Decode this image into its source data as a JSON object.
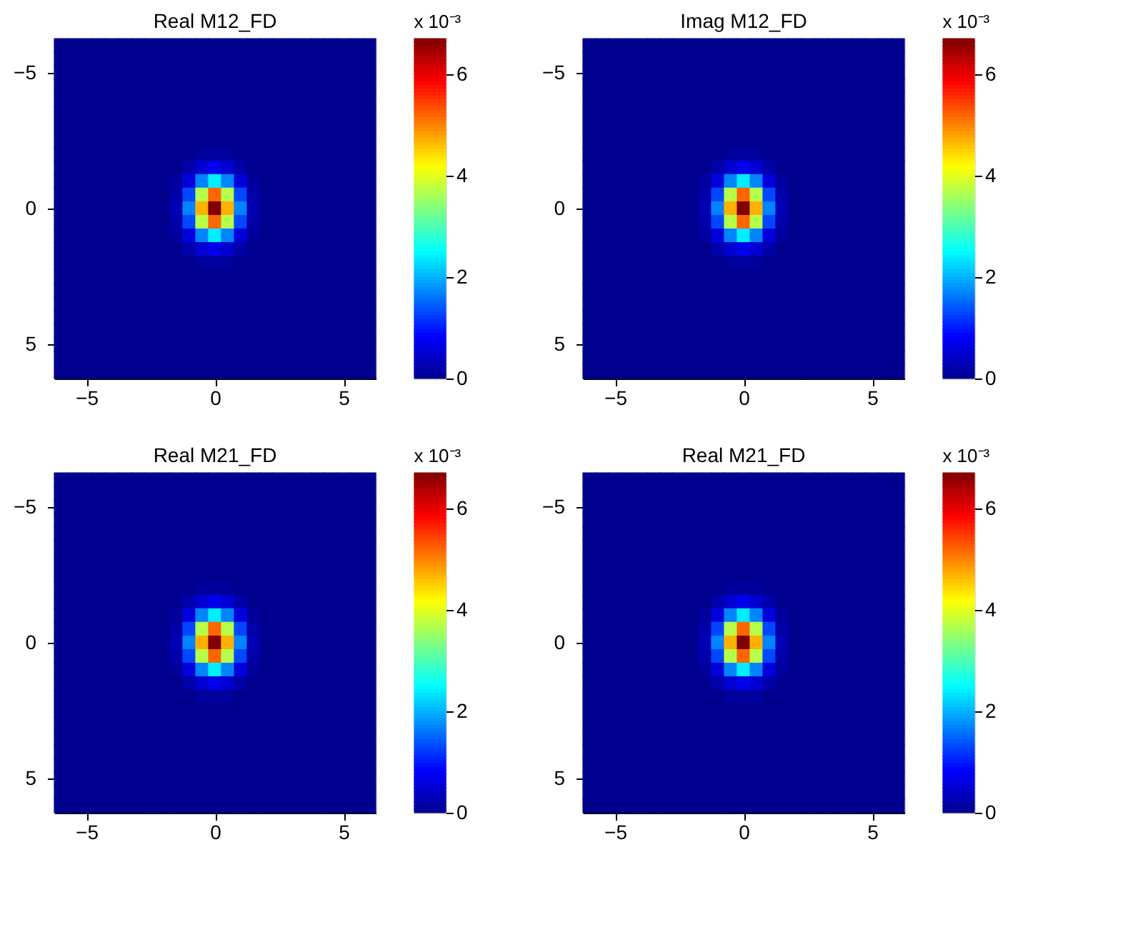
{
  "chart_data": [
    {
      "type": "heatmap",
      "title": "Real M12_FD",
      "clabel": "x 10⁻³",
      "clim": [
        0,
        6.7
      ],
      "cticks": [
        0,
        2,
        4,
        6
      ],
      "xlim": [
        -6.25,
        6.25
      ],
      "ylim": [
        6.25,
        -6.25
      ],
      "xticks": [
        -5,
        0,
        5
      ],
      "yticks": [
        -5,
        0,
        5
      ],
      "x": [
        -6,
        -5.5,
        -5,
        -4.5,
        -4,
        -3.5,
        -3,
        -2.5,
        -2,
        -1.5,
        -1,
        -0.5,
        0,
        0.5,
        1,
        1.5,
        2,
        2.5,
        3,
        3.5,
        4,
        4.5,
        5,
        5.5,
        6
      ],
      "y": [
        -6,
        -5.5,
        -5,
        -4.5,
        -4,
        -3.5,
        -3,
        -2.5,
        -2,
        -1.5,
        -1,
        -0.5,
        0,
        0.5,
        1,
        1.5,
        2,
        2.5,
        3,
        3.5,
        4,
        4.5,
        5,
        5.5,
        6
      ],
      "cells": [
        [
          0,
          0,
          0,
          0,
          0,
          0,
          0,
          0,
          0,
          0,
          0,
          0,
          0,
          0,
          0,
          0,
          0,
          0,
          0,
          0,
          0,
          0,
          0,
          0,
          0
        ],
        [
          0,
          0,
          0,
          0,
          0,
          0,
          0,
          0,
          0,
          0,
          0,
          0,
          0,
          0,
          0,
          0,
          0,
          0,
          0,
          0,
          0,
          0,
          0,
          0,
          0
        ],
        [
          0,
          0,
          0,
          0,
          0,
          0,
          0,
          0,
          0,
          0,
          0,
          0,
          0,
          0,
          0,
          0,
          0,
          0,
          0,
          0,
          0,
          0,
          0,
          0,
          0
        ],
        [
          0,
          0,
          0,
          0,
          0,
          0,
          0,
          0,
          0,
          0,
          0,
          0,
          0,
          0,
          0,
          0,
          0,
          0,
          0,
          0,
          0,
          0,
          0,
          0,
          0
        ],
        [
          0,
          0,
          0,
          0,
          0,
          0,
          0,
          0,
          0,
          0,
          0,
          0,
          0,
          0,
          0,
          0,
          0,
          0,
          0,
          0,
          0,
          0,
          0,
          0,
          0
        ],
        [
          0,
          0,
          0,
          0,
          0,
          0,
          0,
          0,
          0,
          0,
          0,
          0,
          0,
          0,
          0,
          0,
          0,
          0,
          0,
          0,
          0,
          0,
          0,
          0,
          0
        ],
        [
          0,
          0,
          0,
          0,
          0,
          0,
          0,
          0,
          0,
          0,
          0,
          0,
          0,
          0,
          0,
          0,
          0,
          0,
          0,
          0,
          0,
          0,
          0,
          0,
          0
        ],
        [
          0,
          0,
          0,
          0,
          0,
          0,
          0,
          0,
          0,
          0,
          0,
          0,
          0,
          0,
          0,
          0,
          0,
          0,
          0,
          0,
          0,
          0,
          0,
          0,
          0
        ],
        [
          0,
          0,
          0,
          0,
          0,
          0,
          0,
          0,
          0,
          0,
          0,
          0.1,
          0.1,
          0.1,
          0,
          0,
          0,
          0,
          0,
          0,
          0,
          0,
          0,
          0,
          0
        ],
        [
          0,
          0,
          0,
          0,
          0,
          0,
          0,
          0,
          0,
          0,
          0.2,
          0.5,
          0.7,
          0.5,
          0.2,
          0,
          0,
          0,
          0,
          0,
          0,
          0,
          0,
          0,
          0
        ],
        [
          0,
          0,
          0,
          0,
          0,
          0,
          0,
          0,
          0,
          0.1,
          0.6,
          1.7,
          2.4,
          1.7,
          0.6,
          0.1,
          0,
          0,
          0,
          0,
          0,
          0,
          0,
          0,
          0
        ],
        [
          0,
          0,
          0,
          0,
          0,
          0,
          0,
          0,
          0,
          0.2,
          1.3,
          3.7,
          5.2,
          3.7,
          1.3,
          0.2,
          0,
          0,
          0,
          0,
          0,
          0,
          0,
          0,
          0
        ],
        [
          0,
          0,
          0,
          0,
          0,
          0,
          0,
          0,
          0,
          0.3,
          1.7,
          4.7,
          6.7,
          4.7,
          1.7,
          0.3,
          0,
          0,
          0,
          0,
          0,
          0,
          0,
          0,
          0
        ],
        [
          0,
          0,
          0,
          0,
          0,
          0,
          0,
          0,
          0,
          0.2,
          1.3,
          3.7,
          5.2,
          3.7,
          1.3,
          0.2,
          0,
          0,
          0,
          0,
          0,
          0,
          0,
          0,
          0
        ],
        [
          0,
          0,
          0,
          0,
          0,
          0,
          0,
          0,
          0,
          0.1,
          0.6,
          1.7,
          2.4,
          1.7,
          0.6,
          0.1,
          0,
          0,
          0,
          0,
          0,
          0,
          0,
          0,
          0
        ],
        [
          0,
          0,
          0,
          0,
          0,
          0,
          0,
          0,
          0,
          0,
          0.2,
          0.5,
          0.7,
          0.5,
          0.2,
          0,
          0,
          0,
          0,
          0,
          0,
          0,
          0,
          0,
          0
        ],
        [
          0,
          0,
          0,
          0,
          0,
          0,
          0,
          0,
          0,
          0,
          0,
          0.1,
          0.1,
          0.1,
          0,
          0,
          0,
          0,
          0,
          0,
          0,
          0,
          0,
          0,
          0
        ],
        [
          0,
          0,
          0,
          0,
          0,
          0,
          0,
          0,
          0,
          0,
          0,
          0,
          0,
          0,
          0,
          0,
          0,
          0,
          0,
          0,
          0,
          0,
          0,
          0,
          0
        ],
        [
          0,
          0,
          0,
          0,
          0,
          0,
          0,
          0,
          0,
          0,
          0,
          0,
          0,
          0,
          0,
          0,
          0,
          0,
          0,
          0,
          0,
          0,
          0,
          0,
          0
        ],
        [
          0,
          0,
          0,
          0,
          0,
          0,
          0,
          0,
          0,
          0,
          0,
          0,
          0,
          0,
          0,
          0,
          0,
          0,
          0,
          0,
          0,
          0,
          0,
          0,
          0
        ],
        [
          0,
          0,
          0,
          0,
          0,
          0,
          0,
          0,
          0,
          0,
          0,
          0,
          0,
          0,
          0,
          0,
          0,
          0,
          0,
          0,
          0,
          0,
          0,
          0,
          0
        ],
        [
          0,
          0,
          0,
          0,
          0,
          0,
          0,
          0,
          0,
          0,
          0,
          0,
          0,
          0,
          0,
          0,
          0,
          0,
          0,
          0,
          0,
          0,
          0,
          0,
          0
        ],
        [
          0,
          0,
          0,
          0,
          0,
          0,
          0,
          0,
          0,
          0,
          0,
          0,
          0,
          0,
          0,
          0,
          0,
          0,
          0,
          0,
          0,
          0,
          0,
          0,
          0
        ],
        [
          0,
          0,
          0,
          0,
          0,
          0,
          0,
          0,
          0,
          0,
          0,
          0,
          0,
          0,
          0,
          0,
          0,
          0,
          0,
          0,
          0,
          0,
          0,
          0,
          0
        ],
        [
          0,
          0,
          0,
          0,
          0,
          0,
          0,
          0,
          0,
          0,
          0,
          0,
          0,
          0,
          0,
          0,
          0,
          0,
          0,
          0,
          0,
          0,
          0,
          0,
          0
        ]
      ]
    },
    {
      "type": "heatmap",
      "title": "Imag M12_FD",
      "clabel": "x 10⁻³",
      "clim": [
        0,
        6.7
      ],
      "cticks": [
        0,
        2,
        4,
        6
      ],
      "xlim": [
        -6.25,
        6.25
      ],
      "ylim": [
        6.25,
        -6.25
      ],
      "xticks": [
        -5,
        0,
        5
      ],
      "yticks": [
        -5,
        0,
        5
      ],
      "x": [
        -6,
        -5.5,
        -5,
        -4.5,
        -4,
        -3.5,
        -3,
        -2.5,
        -2,
        -1.5,
        -1,
        -0.5,
        0,
        0.5,
        1,
        1.5,
        2,
        2.5,
        3,
        3.5,
        4,
        4.5,
        5,
        5.5,
        6
      ],
      "y": [
        -6,
        -5.5,
        -5,
        -4.5,
        -4,
        -3.5,
        -3,
        -2.5,
        -2,
        -1.5,
        -1,
        -0.5,
        0,
        0.5,
        1,
        1.5,
        2,
        2.5,
        3,
        3.5,
        4,
        4.5,
        5,
        5.5,
        6
      ],
      "cells": [
        [
          0,
          0,
          0,
          0,
          0,
          0,
          0,
          0,
          0,
          0,
          0,
          0,
          0,
          0,
          0,
          0,
          0,
          0,
          0,
          0,
          0,
          0,
          0,
          0,
          0
        ],
        [
          0,
          0,
          0,
          0,
          0,
          0,
          0,
          0,
          0,
          0,
          0,
          0,
          0,
          0,
          0,
          0,
          0,
          0,
          0,
          0,
          0,
          0,
          0,
          0,
          0
        ],
        [
          0,
          0,
          0,
          0,
          0,
          0,
          0,
          0,
          0,
          0,
          0,
          0,
          0,
          0,
          0,
          0,
          0,
          0,
          0,
          0,
          0,
          0,
          0,
          0,
          0
        ],
        [
          0,
          0,
          0,
          0,
          0,
          0,
          0,
          0,
          0,
          0,
          0,
          0,
          0,
          0,
          0,
          0,
          0,
          0,
          0,
          0,
          0,
          0,
          0,
          0,
          0
        ],
        [
          0,
          0,
          0,
          0,
          0,
          0,
          0,
          0,
          0,
          0,
          0,
          0,
          0,
          0,
          0,
          0,
          0,
          0,
          0,
          0,
          0,
          0,
          0,
          0,
          0
        ],
        [
          0,
          0,
          0,
          0,
          0,
          0,
          0,
          0,
          0,
          0,
          0,
          0,
          0,
          0,
          0,
          0,
          0,
          0,
          0,
          0,
          0,
          0,
          0,
          0,
          0
        ],
        [
          0,
          0,
          0,
          0,
          0,
          0,
          0,
          0,
          0,
          0,
          0,
          0,
          0,
          0,
          0,
          0,
          0,
          0,
          0,
          0,
          0,
          0,
          0,
          0,
          0
        ],
        [
          0,
          0,
          0,
          0,
          0,
          0,
          0,
          0,
          0,
          0,
          0,
          0,
          0,
          0,
          0,
          0,
          0,
          0,
          0,
          0,
          0,
          0,
          0,
          0,
          0
        ],
        [
          0,
          0,
          0,
          0,
          0,
          0,
          0,
          0,
          0,
          0,
          0,
          0.1,
          0.1,
          0.1,
          0,
          0,
          0,
          0,
          0,
          0,
          0,
          0,
          0,
          0,
          0
        ],
        [
          0,
          0,
          0,
          0,
          0,
          0,
          0,
          0,
          0,
          0,
          0.2,
          0.5,
          0.7,
          0.5,
          0.2,
          0,
          0,
          0,
          0,
          0,
          0,
          0,
          0,
          0,
          0
        ],
        [
          0,
          0,
          0,
          0,
          0,
          0,
          0,
          0,
          0,
          0.1,
          0.6,
          1.7,
          2.4,
          1.7,
          0.6,
          0.1,
          0,
          0,
          0,
          0,
          0,
          0,
          0,
          0,
          0
        ],
        [
          0,
          0,
          0,
          0,
          0,
          0,
          0,
          0,
          0,
          0.2,
          1.3,
          3.7,
          5.2,
          3.7,
          1.3,
          0.2,
          0,
          0,
          0,
          0,
          0,
          0,
          0,
          0,
          0
        ],
        [
          0,
          0,
          0,
          0,
          0,
          0,
          0,
          0,
          0,
          0.3,
          1.7,
          4.7,
          6.7,
          4.7,
          1.7,
          0.3,
          0,
          0,
          0,
          0,
          0,
          0,
          0,
          0,
          0
        ],
        [
          0,
          0,
          0,
          0,
          0,
          0,
          0,
          0,
          0,
          0.2,
          1.3,
          3.7,
          5.2,
          3.7,
          1.3,
          0.2,
          0,
          0,
          0,
          0,
          0,
          0,
          0,
          0,
          0
        ],
        [
          0,
          0,
          0,
          0,
          0,
          0,
          0,
          0,
          0,
          0.1,
          0.6,
          1.7,
          2.4,
          1.7,
          0.6,
          0.1,
          0,
          0,
          0,
          0,
          0,
          0,
          0,
          0,
          0
        ],
        [
          0,
          0,
          0,
          0,
          0,
          0,
          0,
          0,
          0,
          0,
          0.2,
          0.5,
          0.7,
          0.5,
          0.2,
          0,
          0,
          0,
          0,
          0,
          0,
          0,
          0,
          0,
          0
        ],
        [
          0,
          0,
          0,
          0,
          0,
          0,
          0,
          0,
          0,
          0,
          0,
          0.1,
          0.1,
          0.1,
          0,
          0,
          0,
          0,
          0,
          0,
          0,
          0,
          0,
          0,
          0
        ],
        [
          0,
          0,
          0,
          0,
          0,
          0,
          0,
          0,
          0,
          0,
          0,
          0,
          0,
          0,
          0,
          0,
          0,
          0,
          0,
          0,
          0,
          0,
          0,
          0,
          0
        ],
        [
          0,
          0,
          0,
          0,
          0,
          0,
          0,
          0,
          0,
          0,
          0,
          0,
          0,
          0,
          0,
          0,
          0,
          0,
          0,
          0,
          0,
          0,
          0,
          0,
          0
        ],
        [
          0,
          0,
          0,
          0,
          0,
          0,
          0,
          0,
          0,
          0,
          0,
          0,
          0,
          0,
          0,
          0,
          0,
          0,
          0,
          0,
          0,
          0,
          0,
          0,
          0
        ],
        [
          0,
          0,
          0,
          0,
          0,
          0,
          0,
          0,
          0,
          0,
          0,
          0,
          0,
          0,
          0,
          0,
          0,
          0,
          0,
          0,
          0,
          0,
          0,
          0,
          0
        ],
        [
          0,
          0,
          0,
          0,
          0,
          0,
          0,
          0,
          0,
          0,
          0,
          0,
          0,
          0,
          0,
          0,
          0,
          0,
          0,
          0,
          0,
          0,
          0,
          0,
          0
        ],
        [
          0,
          0,
          0,
          0,
          0,
          0,
          0,
          0,
          0,
          0,
          0,
          0,
          0,
          0,
          0,
          0,
          0,
          0,
          0,
          0,
          0,
          0,
          0,
          0,
          0
        ],
        [
          0,
          0,
          0,
          0,
          0,
          0,
          0,
          0,
          0,
          0,
          0,
          0,
          0,
          0,
          0,
          0,
          0,
          0,
          0,
          0,
          0,
          0,
          0,
          0,
          0
        ],
        [
          0,
          0,
          0,
          0,
          0,
          0,
          0,
          0,
          0,
          0,
          0,
          0,
          0,
          0,
          0,
          0,
          0,
          0,
          0,
          0,
          0,
          0,
          0,
          0,
          0
        ]
      ]
    },
    {
      "type": "heatmap",
      "title": "Real M21_FD",
      "clabel": "x 10⁻³",
      "clim": [
        0,
        6.7
      ],
      "cticks": [
        0,
        2,
        4,
        6
      ],
      "xlim": [
        -6.25,
        6.25
      ],
      "ylim": [
        6.25,
        -6.25
      ],
      "xticks": [
        -5,
        0,
        5
      ],
      "yticks": [
        -5,
        0,
        5
      ],
      "x": [
        -6,
        -5.5,
        -5,
        -4.5,
        -4,
        -3.5,
        -3,
        -2.5,
        -2,
        -1.5,
        -1,
        -0.5,
        0,
        0.5,
        1,
        1.5,
        2,
        2.5,
        3,
        3.5,
        4,
        4.5,
        5,
        5.5,
        6
      ],
      "y": [
        -6,
        -5.5,
        -5,
        -4.5,
        -4,
        -3.5,
        -3,
        -2.5,
        -2,
        -1.5,
        -1,
        -0.5,
        0,
        0.5,
        1,
        1.5,
        2,
        2.5,
        3,
        3.5,
        4,
        4.5,
        5,
        5.5,
        6
      ],
      "cells": [
        [
          0,
          0,
          0,
          0,
          0,
          0,
          0,
          0,
          0,
          0,
          0,
          0,
          0,
          0,
          0,
          0,
          0,
          0,
          0,
          0,
          0,
          0,
          0,
          0,
          0
        ],
        [
          0,
          0,
          0,
          0,
          0,
          0,
          0,
          0,
          0,
          0,
          0,
          0,
          0,
          0,
          0,
          0,
          0,
          0,
          0,
          0,
          0,
          0,
          0,
          0,
          0
        ],
        [
          0,
          0,
          0,
          0,
          0,
          0,
          0,
          0,
          0,
          0,
          0,
          0,
          0,
          0,
          0,
          0,
          0,
          0,
          0,
          0,
          0,
          0,
          0,
          0,
          0
        ],
        [
          0,
          0,
          0,
          0,
          0,
          0,
          0,
          0,
          0,
          0,
          0,
          0,
          0,
          0,
          0,
          0,
          0,
          0,
          0,
          0,
          0,
          0,
          0,
          0,
          0
        ],
        [
          0,
          0,
          0,
          0,
          0,
          0,
          0,
          0,
          0,
          0,
          0,
          0,
          0,
          0,
          0,
          0,
          0,
          0,
          0,
          0,
          0,
          0,
          0,
          0,
          0
        ],
        [
          0,
          0,
          0,
          0,
          0,
          0,
          0,
          0,
          0,
          0,
          0,
          0,
          0,
          0,
          0,
          0,
          0,
          0,
          0,
          0,
          0,
          0,
          0,
          0,
          0
        ],
        [
          0,
          0,
          0,
          0,
          0,
          0,
          0,
          0,
          0,
          0,
          0,
          0,
          0,
          0,
          0,
          0,
          0,
          0,
          0,
          0,
          0,
          0,
          0,
          0,
          0
        ],
        [
          0,
          0,
          0,
          0,
          0,
          0,
          0,
          0,
          0,
          0,
          0,
          0,
          0,
          0,
          0,
          0,
          0,
          0,
          0,
          0,
          0,
          0,
          0,
          0,
          0
        ],
        [
          0,
          0,
          0,
          0,
          0,
          0,
          0,
          0,
          0,
          0,
          0,
          0.1,
          0.1,
          0.1,
          0,
          0,
          0,
          0,
          0,
          0,
          0,
          0,
          0,
          0,
          0
        ],
        [
          0,
          0,
          0,
          0,
          0,
          0,
          0,
          0,
          0,
          0,
          0.2,
          0.5,
          0.7,
          0.5,
          0.2,
          0,
          0,
          0,
          0,
          0,
          0,
          0,
          0,
          0,
          0
        ],
        [
          0,
          0,
          0,
          0,
          0,
          0,
          0,
          0,
          0,
          0.1,
          0.6,
          1.7,
          2.4,
          1.7,
          0.6,
          0.1,
          0,
          0,
          0,
          0,
          0,
          0,
          0,
          0,
          0
        ],
        [
          0,
          0,
          0,
          0,
          0,
          0,
          0,
          0,
          0,
          0.2,
          1.3,
          3.7,
          5.2,
          3.7,
          1.3,
          0.2,
          0,
          0,
          0,
          0,
          0,
          0,
          0,
          0,
          0
        ],
        [
          0,
          0,
          0,
          0,
          0,
          0,
          0,
          0,
          0,
          0.3,
          1.7,
          4.7,
          6.7,
          4.7,
          1.7,
          0.3,
          0,
          0,
          0,
          0,
          0,
          0,
          0,
          0,
          0
        ],
        [
          0,
          0,
          0,
          0,
          0,
          0,
          0,
          0,
          0,
          0.2,
          1.3,
          3.7,
          5.2,
          3.7,
          1.3,
          0.2,
          0,
          0,
          0,
          0,
          0,
          0,
          0,
          0,
          0
        ],
        [
          0,
          0,
          0,
          0,
          0,
          0,
          0,
          0,
          0,
          0.1,
          0.6,
          1.7,
          2.4,
          1.7,
          0.6,
          0.1,
          0,
          0,
          0,
          0,
          0,
          0,
          0,
          0,
          0
        ],
        [
          0,
          0,
          0,
          0,
          0,
          0,
          0,
          0,
          0,
          0,
          0.2,
          0.5,
          0.7,
          0.5,
          0.2,
          0,
          0,
          0,
          0,
          0,
          0,
          0,
          0,
          0,
          0
        ],
        [
          0,
          0,
          0,
          0,
          0,
          0,
          0,
          0,
          0,
          0,
          0,
          0.1,
          0.1,
          0.1,
          0,
          0,
          0,
          0,
          0,
          0,
          0,
          0,
          0,
          0,
          0
        ],
        [
          0,
          0,
          0,
          0,
          0,
          0,
          0,
          0,
          0,
          0,
          0,
          0,
          0,
          0,
          0,
          0,
          0,
          0,
          0,
          0,
          0,
          0,
          0,
          0,
          0
        ],
        [
          0,
          0,
          0,
          0,
          0,
          0,
          0,
          0,
          0,
          0,
          0,
          0,
          0,
          0,
          0,
          0,
          0,
          0,
          0,
          0,
          0,
          0,
          0,
          0,
          0
        ],
        [
          0,
          0,
          0,
          0,
          0,
          0,
          0,
          0,
          0,
          0,
          0,
          0,
          0,
          0,
          0,
          0,
          0,
          0,
          0,
          0,
          0,
          0,
          0,
          0,
          0
        ],
        [
          0,
          0,
          0,
          0,
          0,
          0,
          0,
          0,
          0,
          0,
          0,
          0,
          0,
          0,
          0,
          0,
          0,
          0,
          0,
          0,
          0,
          0,
          0,
          0,
          0
        ],
        [
          0,
          0,
          0,
          0,
          0,
          0,
          0,
          0,
          0,
          0,
          0,
          0,
          0,
          0,
          0,
          0,
          0,
          0,
          0,
          0,
          0,
          0,
          0,
          0,
          0
        ],
        [
          0,
          0,
          0,
          0,
          0,
          0,
          0,
          0,
          0,
          0,
          0,
          0,
          0,
          0,
          0,
          0,
          0,
          0,
          0,
          0,
          0,
          0,
          0,
          0,
          0
        ],
        [
          0,
          0,
          0,
          0,
          0,
          0,
          0,
          0,
          0,
          0,
          0,
          0,
          0,
          0,
          0,
          0,
          0,
          0,
          0,
          0,
          0,
          0,
          0,
          0,
          0
        ],
        [
          0,
          0,
          0,
          0,
          0,
          0,
          0,
          0,
          0,
          0,
          0,
          0,
          0,
          0,
          0,
          0,
          0,
          0,
          0,
          0,
          0,
          0,
          0,
          0,
          0
        ]
      ]
    },
    {
      "type": "heatmap",
      "title": "Real M21_FD",
      "clabel": "x 10⁻³",
      "clim": [
        0,
        6.7
      ],
      "cticks": [
        0,
        2,
        4,
        6
      ],
      "xlim": [
        -6.25,
        6.25
      ],
      "ylim": [
        6.25,
        -6.25
      ],
      "xticks": [
        -5,
        0,
        5
      ],
      "yticks": [
        -5,
        0,
        5
      ],
      "x": [
        -6,
        -5.5,
        -5,
        -4.5,
        -4,
        -3.5,
        -3,
        -2.5,
        -2,
        -1.5,
        -1,
        -0.5,
        0,
        0.5,
        1,
        1.5,
        2,
        2.5,
        3,
        3.5,
        4,
        4.5,
        5,
        5.5,
        6
      ],
      "y": [
        -6,
        -5.5,
        -5,
        -4.5,
        -4,
        -3.5,
        -3,
        -2.5,
        -2,
        -1.5,
        -1,
        -0.5,
        0,
        0.5,
        1,
        1.5,
        2,
        2.5,
        3,
        3.5,
        4,
        4.5,
        5,
        5.5,
        6
      ],
      "cells": [
        [
          0,
          0,
          0,
          0,
          0,
          0,
          0,
          0,
          0,
          0,
          0,
          0,
          0,
          0,
          0,
          0,
          0,
          0,
          0,
          0,
          0,
          0,
          0,
          0,
          0
        ],
        [
          0,
          0,
          0,
          0,
          0,
          0,
          0,
          0,
          0,
          0,
          0,
          0,
          0,
          0,
          0,
          0,
          0,
          0,
          0,
          0,
          0,
          0,
          0,
          0,
          0
        ],
        [
          0,
          0,
          0,
          0,
          0,
          0,
          0,
          0,
          0,
          0,
          0,
          0,
          0,
          0,
          0,
          0,
          0,
          0,
          0,
          0,
          0,
          0,
          0,
          0,
          0
        ],
        [
          0,
          0,
          0,
          0,
          0,
          0,
          0,
          0,
          0,
          0,
          0,
          0,
          0,
          0,
          0,
          0,
          0,
          0,
          0,
          0,
          0,
          0,
          0,
          0,
          0
        ],
        [
          0,
          0,
          0,
          0,
          0,
          0,
          0,
          0,
          0,
          0,
          0,
          0,
          0,
          0,
          0,
          0,
          0,
          0,
          0,
          0,
          0,
          0,
          0,
          0,
          0
        ],
        [
          0,
          0,
          0,
          0,
          0,
          0,
          0,
          0,
          0,
          0,
          0,
          0,
          0,
          0,
          0,
          0,
          0,
          0,
          0,
          0,
          0,
          0,
          0,
          0,
          0
        ],
        [
          0,
          0,
          0,
          0,
          0,
          0,
          0,
          0,
          0,
          0,
          0,
          0,
          0,
          0,
          0,
          0,
          0,
          0,
          0,
          0,
          0,
          0,
          0,
          0,
          0
        ],
        [
          0,
          0,
          0,
          0,
          0,
          0,
          0,
          0,
          0,
          0,
          0,
          0,
          0,
          0,
          0,
          0,
          0,
          0,
          0,
          0,
          0,
          0,
          0,
          0,
          0
        ],
        [
          0,
          0,
          0,
          0,
          0,
          0,
          0,
          0,
          0,
          0,
          0,
          0.1,
          0.1,
          0.1,
          0,
          0,
          0,
          0,
          0,
          0,
          0,
          0,
          0,
          0,
          0
        ],
        [
          0,
          0,
          0,
          0,
          0,
          0,
          0,
          0,
          0,
          0,
          0.2,
          0.5,
          0.7,
          0.5,
          0.2,
          0,
          0,
          0,
          0,
          0,
          0,
          0,
          0,
          0,
          0
        ],
        [
          0,
          0,
          0,
          0,
          0,
          0,
          0,
          0,
          0,
          0.1,
          0.6,
          1.7,
          2.4,
          1.7,
          0.6,
          0.1,
          0,
          0,
          0,
          0,
          0,
          0,
          0,
          0,
          0
        ],
        [
          0,
          0,
          0,
          0,
          0,
          0,
          0,
          0,
          0,
          0.2,
          1.3,
          3.7,
          5.2,
          3.7,
          1.3,
          0.2,
          0,
          0,
          0,
          0,
          0,
          0,
          0,
          0,
          0
        ],
        [
          0,
          0,
          0,
          0,
          0,
          0,
          0,
          0,
          0,
          0.3,
          1.7,
          4.7,
          6.7,
          4.7,
          1.7,
          0.3,
          0,
          0,
          0,
          0,
          0,
          0,
          0,
          0,
          0
        ],
        [
          0,
          0,
          0,
          0,
          0,
          0,
          0,
          0,
          0,
          0.2,
          1.3,
          3.7,
          5.2,
          3.7,
          1.3,
          0.2,
          0,
          0,
          0,
          0,
          0,
          0,
          0,
          0,
          0
        ],
        [
          0,
          0,
          0,
          0,
          0,
          0,
          0,
          0,
          0,
          0.1,
          0.6,
          1.7,
          2.4,
          1.7,
          0.6,
          0.1,
          0,
          0,
          0,
          0,
          0,
          0,
          0,
          0,
          0
        ],
        [
          0,
          0,
          0,
          0,
          0,
          0,
          0,
          0,
          0,
          0,
          0.2,
          0.5,
          0.7,
          0.5,
          0.2,
          0,
          0,
          0,
          0,
          0,
          0,
          0,
          0,
          0,
          0
        ],
        [
          0,
          0,
          0,
          0,
          0,
          0,
          0,
          0,
          0,
          0,
          0,
          0.1,
          0.1,
          0.1,
          0,
          0,
          0,
          0,
          0,
          0,
          0,
          0,
          0,
          0,
          0
        ],
        [
          0,
          0,
          0,
          0,
          0,
          0,
          0,
          0,
          0,
          0,
          0,
          0,
          0,
          0,
          0,
          0,
          0,
          0,
          0,
          0,
          0,
          0,
          0,
          0,
          0
        ],
        [
          0,
          0,
          0,
          0,
          0,
          0,
          0,
          0,
          0,
          0,
          0,
          0,
          0,
          0,
          0,
          0,
          0,
          0,
          0,
          0,
          0,
          0,
          0,
          0,
          0
        ],
        [
          0,
          0,
          0,
          0,
          0,
          0,
          0,
          0,
          0,
          0,
          0,
          0,
          0,
          0,
          0,
          0,
          0,
          0,
          0,
          0,
          0,
          0,
          0,
          0,
          0
        ],
        [
          0,
          0,
          0,
          0,
          0,
          0,
          0,
          0,
          0,
          0,
          0,
          0,
          0,
          0,
          0,
          0,
          0,
          0,
          0,
          0,
          0,
          0,
          0,
          0,
          0
        ],
        [
          0,
          0,
          0,
          0,
          0,
          0,
          0,
          0,
          0,
          0,
          0,
          0,
          0,
          0,
          0,
          0,
          0,
          0,
          0,
          0,
          0,
          0,
          0,
          0,
          0
        ],
        [
          0,
          0,
          0,
          0,
          0,
          0,
          0,
          0,
          0,
          0,
          0,
          0,
          0,
          0,
          0,
          0,
          0,
          0,
          0,
          0,
          0,
          0,
          0,
          0,
          0
        ],
        [
          0,
          0,
          0,
          0,
          0,
          0,
          0,
          0,
          0,
          0,
          0,
          0,
          0,
          0,
          0,
          0,
          0,
          0,
          0,
          0,
          0,
          0,
          0,
          0,
          0
        ],
        [
          0,
          0,
          0,
          0,
          0,
          0,
          0,
          0,
          0,
          0,
          0,
          0,
          0,
          0,
          0,
          0,
          0,
          0,
          0,
          0,
          0,
          0,
          0,
          0,
          0
        ]
      ]
    }
  ]
}
